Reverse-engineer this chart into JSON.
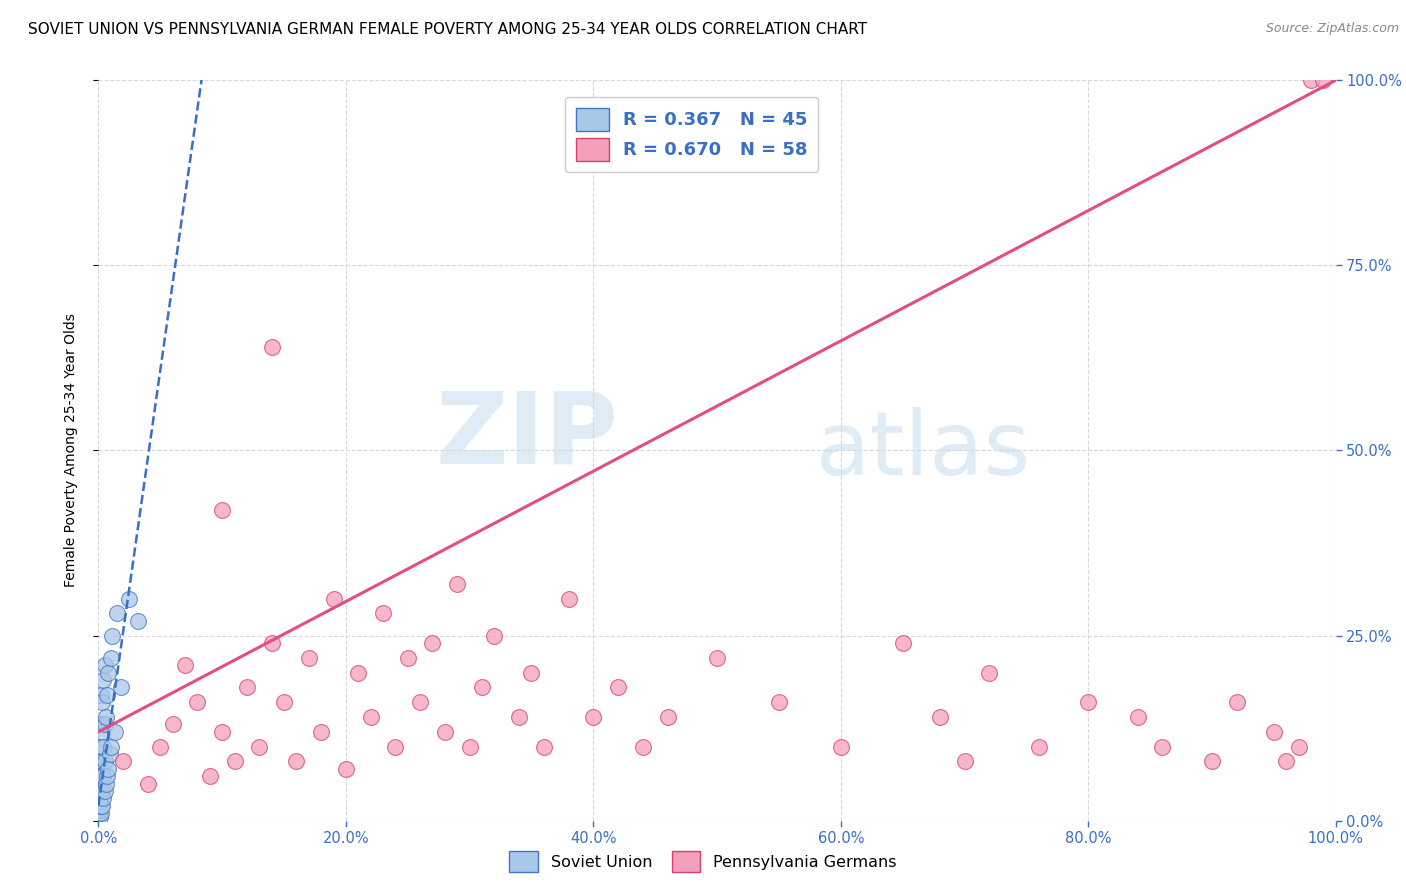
{
  "title": "SOVIET UNION VS PENNSYLVANIA GERMAN FEMALE POVERTY AMONG 25-34 YEAR OLDS CORRELATION CHART",
  "source": "Source: ZipAtlas.com",
  "ylabel": "Female Poverty Among 25-34 Year Olds",
  "xlim": [
    0,
    1
  ],
  "ylim": [
    0,
    1
  ],
  "xtick_labels": [
    "0.0%",
    "20.0%",
    "40.0%",
    "60.0%",
    "80.0%",
    "100.0%"
  ],
  "ytick_labels_right": [
    "0.0%",
    "25.0%",
    "50.0%",
    "75.0%",
    "100.0%"
  ],
  "ytick_positions_right": [
    0.0,
    0.25,
    0.5,
    0.75,
    1.0
  ],
  "xtick_positions": [
    0.0,
    0.2,
    0.4,
    0.6,
    0.8,
    1.0
  ],
  "blue_color": "#a8c8e8",
  "pink_color": "#f4a0b8",
  "blue_line_color": "#3a6fc4",
  "pink_line_color": "#e0507a",
  "blue_edge_color": "#4472c4",
  "pink_edge_color": "#d44070",
  "watermark_zip": "ZIP",
  "watermark_atlas": "atlas",
  "soviet_scatter_x": [
    0.001,
    0.001,
    0.001,
    0.001,
    0.001,
    0.001,
    0.001,
    0.001,
    0.001,
    0.002,
    0.002,
    0.002,
    0.002,
    0.002,
    0.002,
    0.002,
    0.002,
    0.003,
    0.003,
    0.003,
    0.003,
    0.003,
    0.004,
    0.004,
    0.004,
    0.004,
    0.005,
    0.005,
    0.005,
    0.005,
    0.006,
    0.006,
    0.007,
    0.007,
    0.008,
    0.008,
    0.009,
    0.01,
    0.01,
    0.011,
    0.013,
    0.015,
    0.018,
    0.025,
    0.032
  ],
  "soviet_scatter_y": [
    0.005,
    0.01,
    0.015,
    0.02,
    0.025,
    0.03,
    0.04,
    0.05,
    0.08,
    0.01,
    0.02,
    0.04,
    0.06,
    0.08,
    0.1,
    0.13,
    0.17,
    0.02,
    0.04,
    0.08,
    0.12,
    0.16,
    0.03,
    0.06,
    0.1,
    0.19,
    0.04,
    0.08,
    0.13,
    0.21,
    0.05,
    0.14,
    0.06,
    0.17,
    0.07,
    0.2,
    0.09,
    0.1,
    0.22,
    0.25,
    0.12,
    0.28,
    0.18,
    0.3,
    0.27
  ],
  "penn_scatter_x": [
    0.02,
    0.04,
    0.05,
    0.06,
    0.07,
    0.08,
    0.09,
    0.1,
    0.1,
    0.11,
    0.12,
    0.13,
    0.14,
    0.14,
    0.15,
    0.16,
    0.17,
    0.18,
    0.19,
    0.2,
    0.21,
    0.22,
    0.23,
    0.24,
    0.25,
    0.26,
    0.27,
    0.28,
    0.29,
    0.3,
    0.31,
    0.32,
    0.34,
    0.35,
    0.36,
    0.38,
    0.4,
    0.42,
    0.44,
    0.46,
    0.5,
    0.55,
    0.6,
    0.65,
    0.68,
    0.7,
    0.72,
    0.76,
    0.8,
    0.84,
    0.86,
    0.9,
    0.92,
    0.95,
    0.96,
    0.97,
    0.98,
    0.99
  ],
  "penn_scatter_y": [
    0.08,
    0.05,
    0.1,
    0.13,
    0.21,
    0.16,
    0.06,
    0.12,
    0.42,
    0.08,
    0.18,
    0.1,
    0.24,
    0.64,
    0.16,
    0.08,
    0.22,
    0.12,
    0.3,
    0.07,
    0.2,
    0.14,
    0.28,
    0.1,
    0.22,
    0.16,
    0.24,
    0.12,
    0.32,
    0.1,
    0.18,
    0.25,
    0.14,
    0.2,
    0.1,
    0.3,
    0.14,
    0.18,
    0.1,
    0.14,
    0.22,
    0.16,
    0.1,
    0.24,
    0.14,
    0.08,
    0.2,
    0.1,
    0.16,
    0.14,
    0.1,
    0.08,
    0.16,
    0.12,
    0.08,
    0.1,
    1.0,
    1.0
  ],
  "blue_trendline_x": [
    0.0,
    0.085
  ],
  "blue_trendline_y": [
    0.02,
    1.02
  ],
  "pink_trendline_x": [
    0.0,
    1.0
  ],
  "pink_trendline_y": [
    0.12,
    1.0
  ],
  "background_color": "#ffffff",
  "grid_color": "#d8d8d8",
  "title_fontsize": 11,
  "axis_label_fontsize": 10,
  "tick_fontsize": 10.5
}
